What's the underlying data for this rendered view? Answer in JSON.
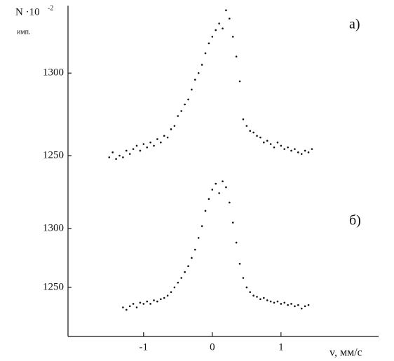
{
  "chart_data": [
    {
      "type": "scatter",
      "title": "а)",
      "y_label": "N ·10",
      "y_label_exponent": "-2",
      "y_unit": "имп.",
      "color": "#111111",
      "xlim": [
        -2.1,
        2.42
      ],
      "ylim": [
        1244.5,
        1340
      ],
      "yticks": [
        1250,
        1300
      ],
      "x": [
        -1.5,
        -1.45,
        -1.4,
        -1.35,
        -1.3,
        -1.25,
        -1.2,
        -1.15,
        -1.1,
        -1.05,
        -1.0,
        -0.95,
        -0.9,
        -0.85,
        -0.8,
        -0.75,
        -0.7,
        -0.65,
        -0.6,
        -0.55,
        -0.5,
        -0.45,
        -0.4,
        -0.35,
        -0.3,
        -0.25,
        -0.2,
        -0.15,
        -0.1,
        -0.05,
        0.0,
        0.05,
        0.1,
        0.15,
        0.2,
        0.25,
        0.3,
        0.35,
        0.4,
        0.45,
        0.5,
        0.55,
        0.6,
        0.65,
        0.7,
        0.75,
        0.8,
        0.85,
        0.9,
        0.95,
        1.0,
        1.05,
        1.1,
        1.15,
        1.2,
        1.25,
        1.3,
        1.35,
        1.4,
        1.45
      ],
      "values": [
        1249,
        1252,
        1248,
        1250,
        1249,
        1253,
        1251,
        1254,
        1256,
        1253,
        1257,
        1255,
        1258,
        1256,
        1260,
        1258,
        1262,
        1261,
        1266,
        1268,
        1274,
        1277,
        1281,
        1284,
        1290,
        1296,
        1300,
        1305,
        1312,
        1318,
        1322,
        1326,
        1330,
        1327,
        1338,
        1333,
        1322,
        1310,
        1295,
        1272,
        1268,
        1265,
        1264,
        1262,
        1261,
        1258,
        1259,
        1257,
        1255,
        1258,
        1256,
        1254,
        1255,
        1253,
        1254,
        1252,
        1251,
        1253,
        1252,
        1254
      ]
    },
    {
      "type": "scatter",
      "title": "б)",
      "x_label": "v, мм/с",
      "color": "#111111",
      "xlim": [
        -2.1,
        2.42
      ],
      "ylim": [
        1208.3,
        1345.2
      ],
      "yticks": [
        1250,
        1300
      ],
      "xticks": [
        -1,
        0,
        1
      ],
      "x": [
        -1.3,
        -1.25,
        -1.2,
        -1.15,
        -1.1,
        -1.05,
        -1.0,
        -0.95,
        -0.9,
        -0.85,
        -0.8,
        -0.75,
        -0.7,
        -0.65,
        -0.6,
        -0.55,
        -0.5,
        -0.45,
        -0.4,
        -0.35,
        -0.3,
        -0.25,
        -0.2,
        -0.15,
        -0.1,
        -0.05,
        0.0,
        0.05,
        0.1,
        0.15,
        0.2,
        0.25,
        0.3,
        0.35,
        0.4,
        0.45,
        0.5,
        0.55,
        0.6,
        0.65,
        0.7,
        0.75,
        0.8,
        0.85,
        0.9,
        0.95,
        1.0,
        1.05,
        1.1,
        1.15,
        1.2,
        1.25,
        1.3,
        1.35,
        1.4
      ],
      "values": [
        1233,
        1231,
        1234,
        1236,
        1233,
        1237,
        1236,
        1238,
        1236,
        1239,
        1238,
        1240,
        1241,
        1243,
        1246,
        1250,
        1254,
        1258,
        1263,
        1268,
        1275,
        1282,
        1292,
        1302,
        1315,
        1325,
        1333,
        1338,
        1330,
        1340,
        1335,
        1322,
        1305,
        1288,
        1270,
        1258,
        1250,
        1246,
        1243,
        1242,
        1240,
        1241,
        1239,
        1238,
        1237,
        1238,
        1236,
        1237,
        1235,
        1236,
        1234,
        1235,
        1232,
        1234,
        1235
      ]
    }
  ]
}
